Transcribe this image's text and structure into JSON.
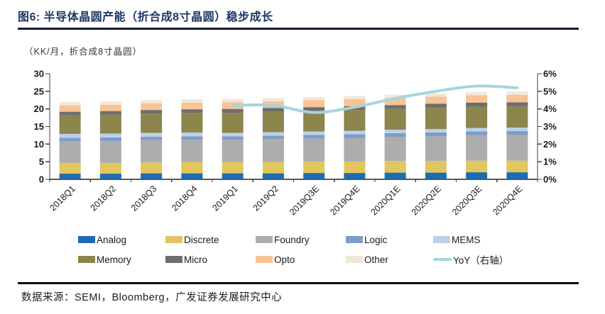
{
  "header": {
    "title": "图6:  半导体晶圆产能（折合成8寸晶圆）稳步成长"
  },
  "footer": {
    "source_text": "数据来源：SEMI，Bloomberg，广发证券发展研究中心"
  },
  "chart_data": {
    "type": "bar",
    "stacked": true,
    "title": "半导体晶圆产能（折合成8寸晶圆）稳步成长",
    "unit_label": "（KK/月，折合成8寸晶圆）",
    "categories": [
      "2018Q1",
      "2018Q2",
      "2018Q3",
      "2018Q4",
      "2019Q1",
      "2019Q2",
      "2019Q3E",
      "2019Q4E",
      "2020Q1E",
      "2020Q2E",
      "2020Q3E",
      "2020Q4E"
    ],
    "series": [
      {
        "name": "Analog",
        "color": "#1F6BB0",
        "values": [
          1.6,
          1.6,
          1.7,
          1.7,
          1.7,
          1.7,
          1.8,
          1.8,
          1.9,
          1.9,
          2.0,
          2.0
        ]
      },
      {
        "name": "Discrete",
        "color": "#E2C65E",
        "values": [
          3.1,
          3.1,
          3.1,
          3.2,
          3.2,
          3.2,
          3.2,
          3.2,
          3.3,
          3.3,
          3.3,
          3.3
        ]
      },
      {
        "name": "Foundry",
        "color": "#ADADAD",
        "values": [
          6.1,
          6.2,
          6.3,
          6.3,
          6.3,
          6.5,
          6.6,
          6.7,
          6.8,
          7.0,
          7.2,
          7.3
        ]
      },
      {
        "name": "Logic",
        "color": "#7E9CC9",
        "values": [
          1.0,
          1.0,
          1.0,
          1.0,
          1.0,
          1.0,
          1.0,
          1.1,
          1.1,
          1.1,
          1.1,
          1.1
        ]
      },
      {
        "name": "MEMS",
        "color": "#BCD1E8",
        "values": [
          1.1,
          1.1,
          1.1,
          1.1,
          1.0,
          1.0,
          1.0,
          1.0,
          1.0,
          1.0,
          1.0,
          1.0
        ]
      },
      {
        "name": "Memory",
        "color": "#8C854C",
        "values": [
          5.3,
          5.4,
          5.5,
          5.6,
          5.7,
          5.8,
          5.8,
          5.9,
          5.9,
          6.0,
          6.0,
          6.0
        ]
      },
      {
        "name": "Micro",
        "color": "#6E6E6E",
        "values": [
          1.0,
          1.0,
          1.0,
          1.0,
          1.1,
          1.1,
          1.1,
          1.1,
          1.1,
          1.2,
          1.2,
          1.2
        ]
      },
      {
        "name": "Opto",
        "color": "#F8C395",
        "values": [
          1.8,
          1.8,
          1.9,
          1.9,
          1.9,
          1.9,
          2.0,
          2.0,
          2.0,
          2.0,
          2.1,
          2.1
        ]
      },
      {
        "name": "Other",
        "color": "#F0E8D8",
        "values": [
          0.9,
          0.9,
          0.9,
          0.9,
          0.9,
          0.9,
          0.9,
          0.9,
          0.9,
          0.9,
          0.9,
          0.9
        ]
      }
    ],
    "line_series": {
      "name": "YoY（右轴）",
      "color": "#A5D5DE",
      "axis": "right",
      "values": [
        null,
        null,
        null,
        null,
        4.2,
        4.2,
        3.8,
        4.1,
        4.6,
        5.0,
        5.3,
        5.2
      ]
    },
    "left_axis": {
      "min": 0,
      "max": 30,
      "tick_labels": [
        "0",
        "5",
        "10",
        "15",
        "20",
        "25",
        "30"
      ]
    },
    "right_axis": {
      "min": 0,
      "max": 6,
      "tick_labels": [
        "0%",
        "1%",
        "2%",
        "3%",
        "4%",
        "5%",
        "6%"
      ]
    },
    "grid": false,
    "legend_position": "bottom"
  },
  "style": {
    "title_color": "#1F3864",
    "rule_color": "#0e1b33",
    "axis_color": "#404040",
    "baseline_color": "#595959",
    "tick_label_color": "#1a1a1a"
  }
}
